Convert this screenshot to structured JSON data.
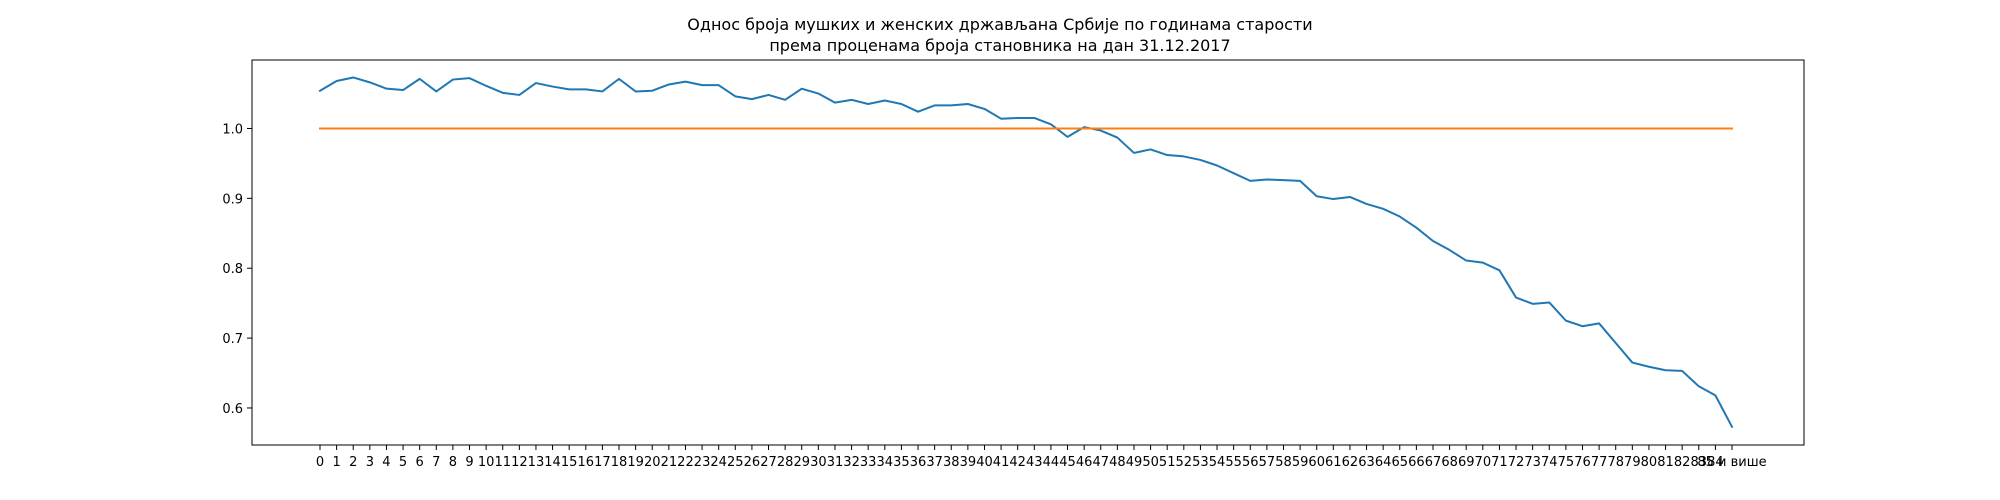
{
  "chart_data": {
    "type": "line",
    "title": "Однос броја мушких и женских држављана Србије по годинама старости",
    "subtitle": "према проценама броја становника на дан 31.12.2017",
    "xlabel": "",
    "ylabel": "",
    "ylim": [
      0.547,
      1.098
    ],
    "yticks": [
      0.6,
      0.7,
      0.8,
      0.9,
      1.0
    ],
    "ytick_labels": [
      "0.6",
      "0.7",
      "0.8",
      "0.9",
      "1.0"
    ],
    "grid": false,
    "categories": [
      "0",
      "1",
      "2",
      "3",
      "4",
      "5",
      "6",
      "7",
      "8",
      "9",
      "10",
      "11",
      "12",
      "13",
      "14",
      "15",
      "16",
      "17",
      "18",
      "19",
      "20",
      "21",
      "22",
      "23",
      "24",
      "25",
      "26",
      "27",
      "28",
      "29",
      "30",
      "31",
      "32",
      "33",
      "34",
      "35",
      "36",
      "37",
      "38",
      "39",
      "40",
      "41",
      "42",
      "43",
      "44",
      "45",
      "46",
      "47",
      "48",
      "49",
      "50",
      "51",
      "52",
      "53",
      "54",
      "55",
      "56",
      "57",
      "58",
      "59",
      "60",
      "61",
      "62",
      "63",
      "64",
      "65",
      "66",
      "67",
      "68",
      "69",
      "70",
      "71",
      "72",
      "73",
      "74",
      "75",
      "76",
      "77",
      "78",
      "79",
      "80",
      "81",
      "82",
      "83",
      "84",
      "85 и више"
    ],
    "series": [
      {
        "color": "#1f77b4",
        "values": [
          1.054,
          1.068,
          1.073,
          1.066,
          1.057,
          1.055,
          1.071,
          1.053,
          1.07,
          1.072,
          1.061,
          1.051,
          1.048,
          1.065,
          1.06,
          1.056,
          1.056,
          1.053,
          1.071,
          1.053,
          1.054,
          1.063,
          1.067,
          1.062,
          1.062,
          1.046,
          1.042,
          1.048,
          1.041,
          1.057,
          1.05,
          1.037,
          1.041,
          1.035,
          1.04,
          1.035,
          1.024,
          1.033,
          1.033,
          1.035,
          1.028,
          1.014,
          1.015,
          1.015,
          1.006,
          0.988,
          1.002,
          0.997,
          0.987,
          0.965,
          0.97,
          0.962,
          0.96,
          0.955,
          0.947,
          0.936,
          0.925,
          0.927,
          0.926,
          0.925,
          0.903,
          0.899,
          0.902,
          0.892,
          0.885,
          0.874,
          0.858,
          0.839,
          0.826,
          0.811,
          0.808,
          0.797,
          0.758,
          0.749,
          0.751,
          0.725,
          0.717,
          0.721,
          0.693,
          0.665,
          0.659,
          0.654,
          0.653,
          0.631,
          0.618,
          0.573
        ]
      },
      {
        "color": "#ff7f0e",
        "values": [
          1.0,
          1.0,
          1.0,
          1.0,
          1.0,
          1.0,
          1.0,
          1.0,
          1.0,
          1.0,
          1.0,
          1.0,
          1.0,
          1.0,
          1.0,
          1.0,
          1.0,
          1.0,
          1.0,
          1.0,
          1.0,
          1.0,
          1.0,
          1.0,
          1.0,
          1.0,
          1.0,
          1.0,
          1.0,
          1.0,
          1.0,
          1.0,
          1.0,
          1.0,
          1.0,
          1.0,
          1.0,
          1.0,
          1.0,
          1.0,
          1.0,
          1.0,
          1.0,
          1.0,
          1.0,
          1.0,
          1.0,
          1.0,
          1.0,
          1.0,
          1.0,
          1.0,
          1.0,
          1.0,
          1.0,
          1.0,
          1.0,
          1.0,
          1.0,
          1.0,
          1.0,
          1.0,
          1.0,
          1.0,
          1.0,
          1.0,
          1.0,
          1.0,
          1.0,
          1.0,
          1.0,
          1.0,
          1.0,
          1.0,
          1.0,
          1.0,
          1.0,
          1.0,
          1.0,
          1.0,
          1.0,
          1.0,
          1.0,
          1.0,
          1.0,
          1.0
        ]
      }
    ]
  }
}
